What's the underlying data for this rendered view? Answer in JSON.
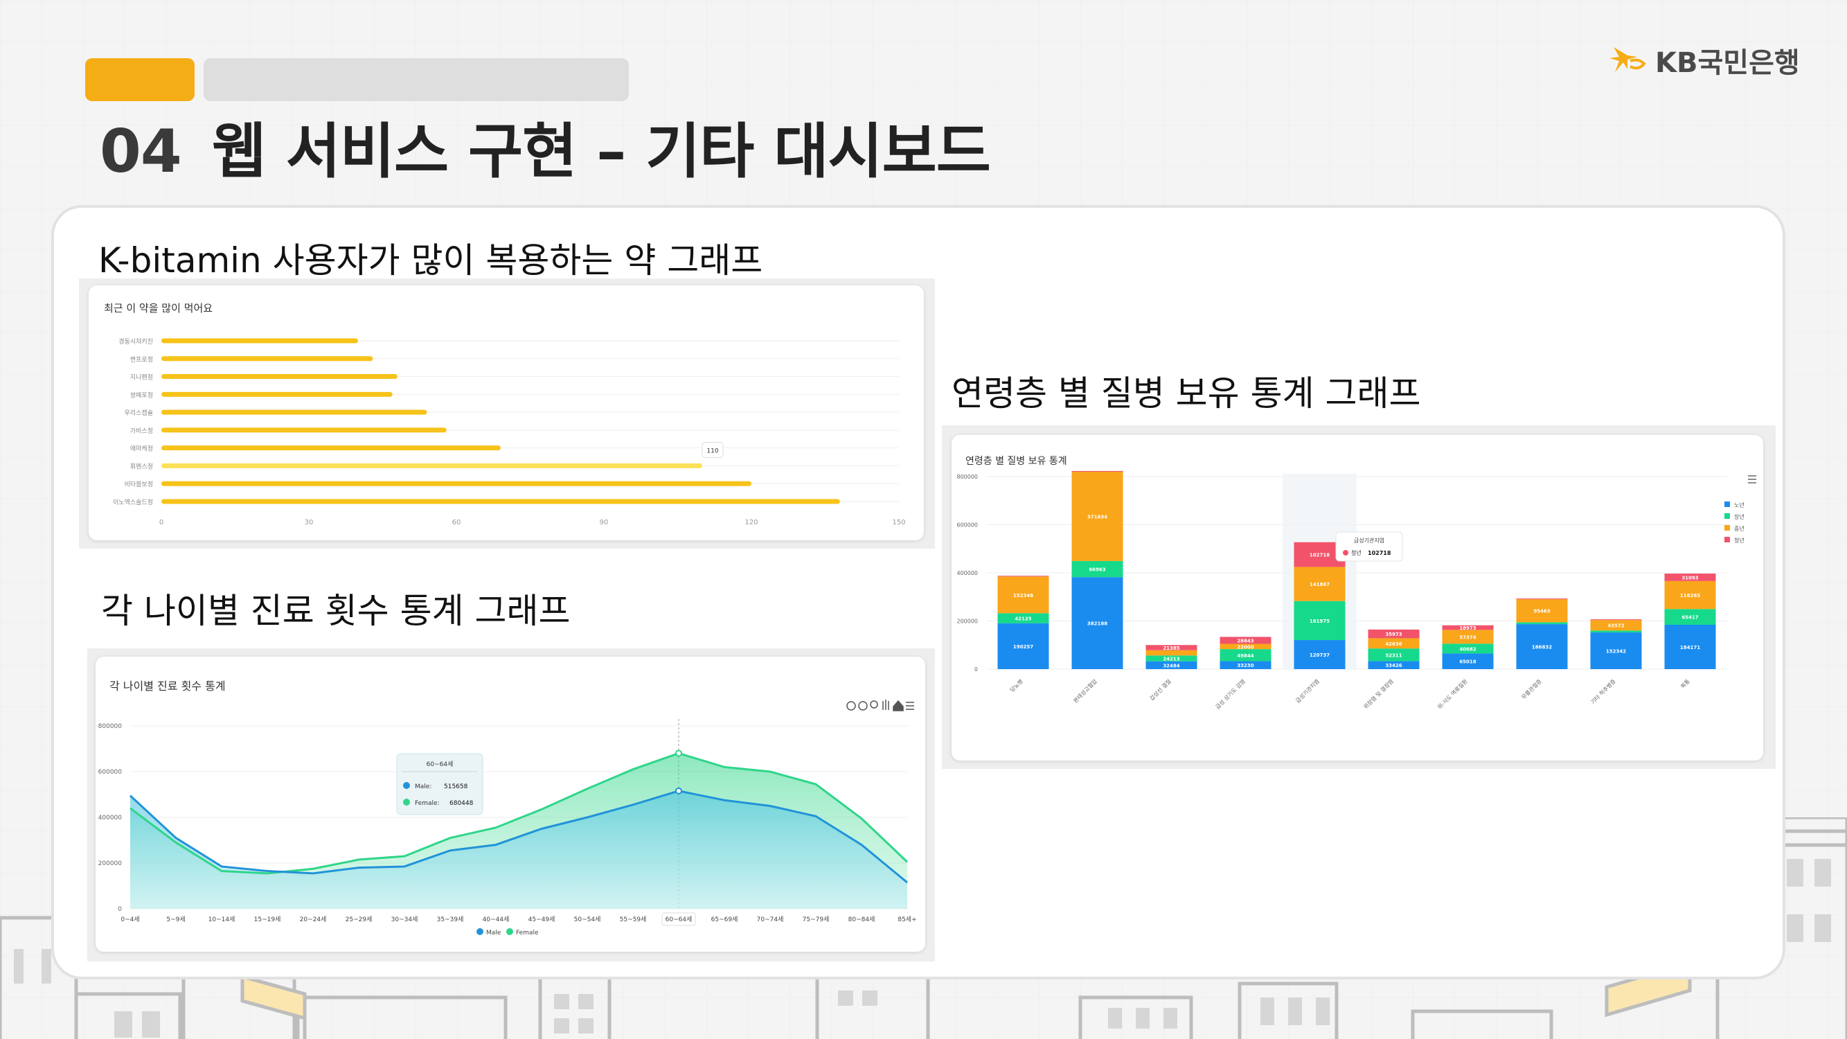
{
  "slide": {
    "section_number": "04",
    "title": "웹 서비스 구현 – 기타 대시보드",
    "logo_text": "KB국민은행",
    "brand_color": "#f5ad16"
  },
  "sections": {
    "drug_title": "K-bitamin 사용자가 많이 복용하는 약 그래프",
    "age_title": "각 나이별 진료 횟수 통계 그래프",
    "disease_title": "연령층 별 질병 보유 통계 그래프"
  },
  "drug_chart": {
    "header": "최근 이 약을 많이 먹어요",
    "chart_data": {
      "type": "bar",
      "orientation": "horizontal",
      "categories": [
        "경동시자키진",
        "변프로정",
        "지니펜정",
        "쌍패포정",
        "우리스캡슐",
        "가비스정",
        "애마케정",
        "휘펜스정",
        "비타블보정",
        "이노엑스솔드정"
      ],
      "values": [
        40,
        43,
        48,
        47,
        54,
        58,
        69,
        110,
        120,
        138
      ],
      "xticks": [
        "0",
        "30",
        "60",
        "90",
        "120",
        "150"
      ],
      "xlim": [
        0,
        150
      ],
      "highlight_index": 7,
      "tooltip": "110",
      "color": "#f7c31a",
      "highlight_color": "#fbe15a"
    }
  },
  "age_chart": {
    "header": "각 나이별 진료 횟수 통계",
    "chart_data": {
      "type": "area",
      "categories": [
        "0~4세",
        "5~9세",
        "10~14세",
        "15~19세",
        "20~24세",
        "25~29세",
        "30~34세",
        "35~39세",
        "40~44세",
        "45~49세",
        "50~54세",
        "55~59세",
        "60~64세",
        "65~69세",
        "70~74세",
        "75~79세",
        "80~84세",
        "85세+"
      ],
      "series": [
        {
          "name": "Male",
          "values": [
            495000,
            310000,
            185000,
            165000,
            155000,
            180000,
            185000,
            255000,
            280000,
            350000,
            400000,
            455000,
            515658,
            475000,
            450000,
            405000,
            280000,
            115000
          ],
          "color": "#2193d8"
        },
        {
          "name": "Female",
          "values": [
            440000,
            290000,
            165000,
            155000,
            175000,
            215000,
            230000,
            310000,
            355000,
            435000,
            525000,
            610000,
            680448,
            620000,
            600000,
            545000,
            395000,
            205000
          ],
          "color": "#2fd589"
        }
      ],
      "yticks": [
        "0",
        "200000",
        "400000",
        "600000",
        "800000"
      ],
      "ylim": [
        0,
        800000
      ],
      "tooltip": {
        "category": "60~64세",
        "male_label": "Male:",
        "male_value": "515658",
        "female_label": "Female:",
        "female_value": "680448"
      }
    }
  },
  "disease_chart": {
    "header": "연령층 별 질병 보유 통계",
    "chart_data": {
      "type": "bar",
      "stacked": true,
      "categories": [
        "당뇨병",
        "본태성고혈압",
        "갑상선 결절",
        "급성 상기도 감염",
        "급성기관지염",
        "위장염 및 결장염",
        "위-식도 역류질환",
        "무릎관절증",
        "기타 척추병증",
        "복통"
      ],
      "series": [
        {
          "name": "노년",
          "color": "#1a8cf0",
          "values": [
            190257,
            382188,
            32484,
            33230,
            120737,
            33426,
            65018,
            186832,
            152342,
            184171
          ],
          "labels": [
            "190257",
            "382188",
            "32484",
            "33230",
            "120737",
            "33426",
            "65018",
            "186832",
            "152342",
            "184171"
          ]
        },
        {
          "name": "장년",
          "color": "#17d98b",
          "values": [
            42125,
            66963,
            24213,
            49844,
            161975,
            52311,
            40682,
            8000,
            8000,
            65417
          ],
          "labels": [
            "42125",
            "66963",
            "24213",
            "49844",
            "161975",
            "52311",
            "40682",
            "",
            "",
            "65417"
          ]
        },
        {
          "name": "중년",
          "color": "#f9a61a",
          "values": [
            152346,
            371034,
            22000,
            22000,
            141867,
            42636,
            57374,
            95463,
            43572,
            116265
          ],
          "labels": [
            "152346",
            "371034",
            "",
            "22000",
            "141867",
            "42636",
            "57374",
            "95463",
            "43572",
            "116265"
          ]
        },
        {
          "name": "청년",
          "color": "#f2536b",
          "values": [
            3000,
            3000,
            21385,
            28843,
            102718,
            35973,
            18973,
            3000,
            3000,
            31093
          ],
          "labels": [
            "",
            "",
            "21385",
            "28843",
            "102718",
            "35973",
            "18973",
            "",
            "",
            "31093"
          ]
        }
      ],
      "yticks": [
        "0",
        "200000",
        "400000",
        "600000",
        "800000"
      ],
      "ylim": [
        0,
        800000
      ],
      "legend_position": "right",
      "highlight_index": 4,
      "tooltip": {
        "category": "급성기관지염",
        "series_name": "청년",
        "value": "102718"
      }
    }
  }
}
